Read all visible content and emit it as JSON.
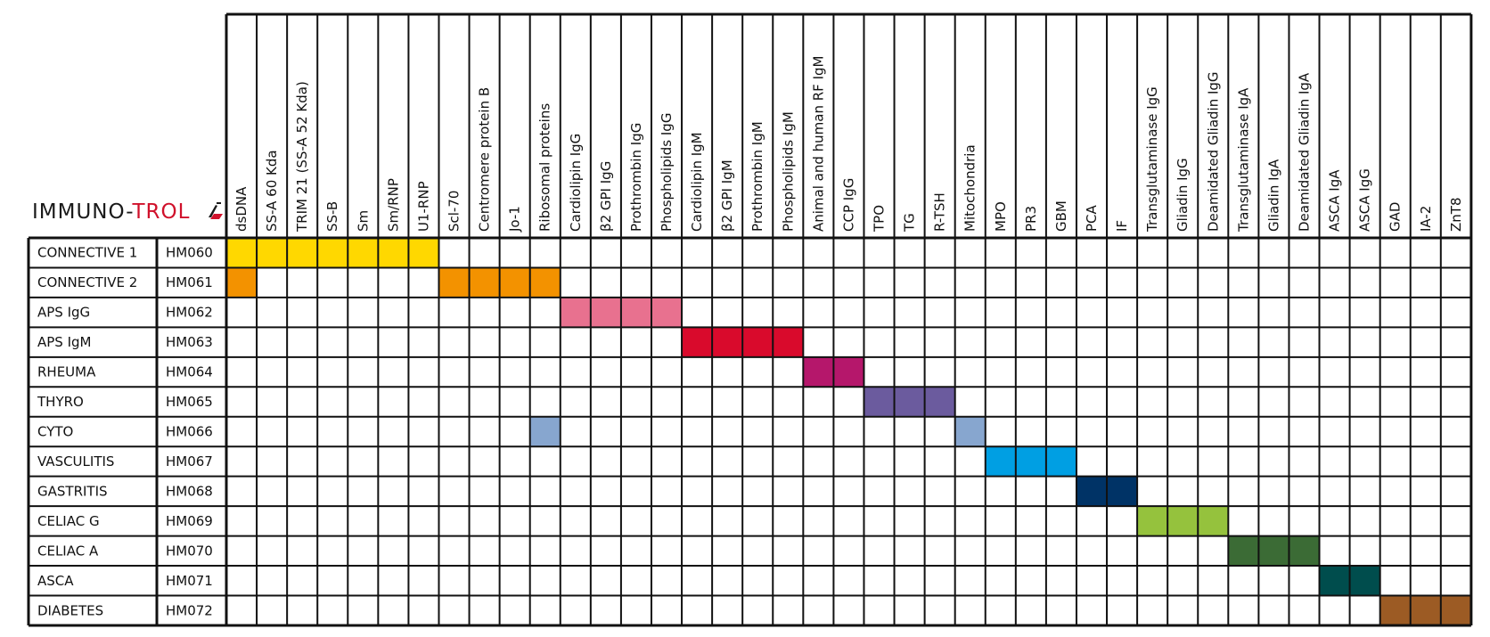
{
  "logo": {
    "part1": "IMMUNO-",
    "part2": "TROL",
    "mark_icon": "flask-icon",
    "color1": "#1a1a1a",
    "color2": "#d0112b"
  },
  "chart_data": {
    "type": "table",
    "columns": [
      "dsDNA",
      "SS-A 60 Kda",
      "TRIM 21 (SS-A 52 Kda)",
      "SS-B",
      "Sm",
      "Sm/RNP",
      "U1-RNP",
      "Scl-70",
      "Centromere protein B",
      "Jo-1",
      "Ribosomal proteins",
      "Cardiolipin IgG",
      "β2 GPI IgG",
      "Prothrombin IgG",
      "Phospholipids IgG",
      "Cardiolipin IgM",
      "β2 GPI IgM",
      "Prothrombin IgM",
      "Phospholipids IgM",
      "Animal and human RF IgM",
      "CCP IgG",
      "TPO",
      "TG",
      "R-TSH",
      "Mitochondria",
      "MPO",
      "PR3",
      "GBM",
      "PCA",
      "IF",
      "Transglutaminase IgG",
      "Gliadin IgG",
      "Deamidated Gliadin IgG",
      "Transglutaminase IgA",
      "Gliadin IgA",
      "Deamidated Gliadin IgA",
      "ASCA IgA",
      "ASCA IgG",
      "GAD",
      "IA-2",
      "ZnT8"
    ],
    "rows": [
      {
        "name": "CONNECTIVE 1",
        "code": "HM060",
        "color": "#ffd800",
        "filled": [
          0,
          1,
          2,
          3,
          4,
          5,
          6
        ]
      },
      {
        "name": "CONNECTIVE 2",
        "code": "HM061",
        "color": "#f39200",
        "filled": [
          0,
          7,
          8,
          9,
          10
        ]
      },
      {
        "name": "APS IgG",
        "code": "HM062",
        "color": "#e8718f",
        "filled": [
          11,
          12,
          13,
          14
        ]
      },
      {
        "name": "APS IgM",
        "code": "HM063",
        "color": "#d90a2c",
        "filled": [
          15,
          16,
          17,
          18
        ]
      },
      {
        "name": "RHEUMA",
        "code": "HM064",
        "color": "#b5176b",
        "filled": [
          19,
          20
        ]
      },
      {
        "name": "THYRO",
        "code": "HM065",
        "color": "#6b5b9e",
        "filled": [
          21,
          22,
          23
        ]
      },
      {
        "name": "CYTO",
        "code": "HM066",
        "color": "#87a6cf",
        "filled": [
          10,
          24
        ]
      },
      {
        "name": "VASCULITIS",
        "code": "HM067",
        "color": "#009fe3",
        "filled": [
          25,
          26,
          27
        ]
      },
      {
        "name": "GASTRITIS",
        "code": "HM068",
        "color": "#003366",
        "filled": [
          28,
          29
        ]
      },
      {
        "name": "CELIAC G",
        "code": "HM069",
        "color": "#95c23d",
        "filled": [
          30,
          31,
          32
        ]
      },
      {
        "name": "CELIAC A",
        "code": "HM070",
        "color": "#3b6b35",
        "filled": [
          33,
          34,
          35
        ]
      },
      {
        "name": "ASCA",
        "code": "HM071",
        "color": "#004d4d",
        "filled": [
          36,
          37
        ]
      },
      {
        "name": "DIABETES",
        "code": "HM072",
        "color": "#9c5b24",
        "filled": [
          38,
          39,
          40
        ]
      }
    ]
  }
}
